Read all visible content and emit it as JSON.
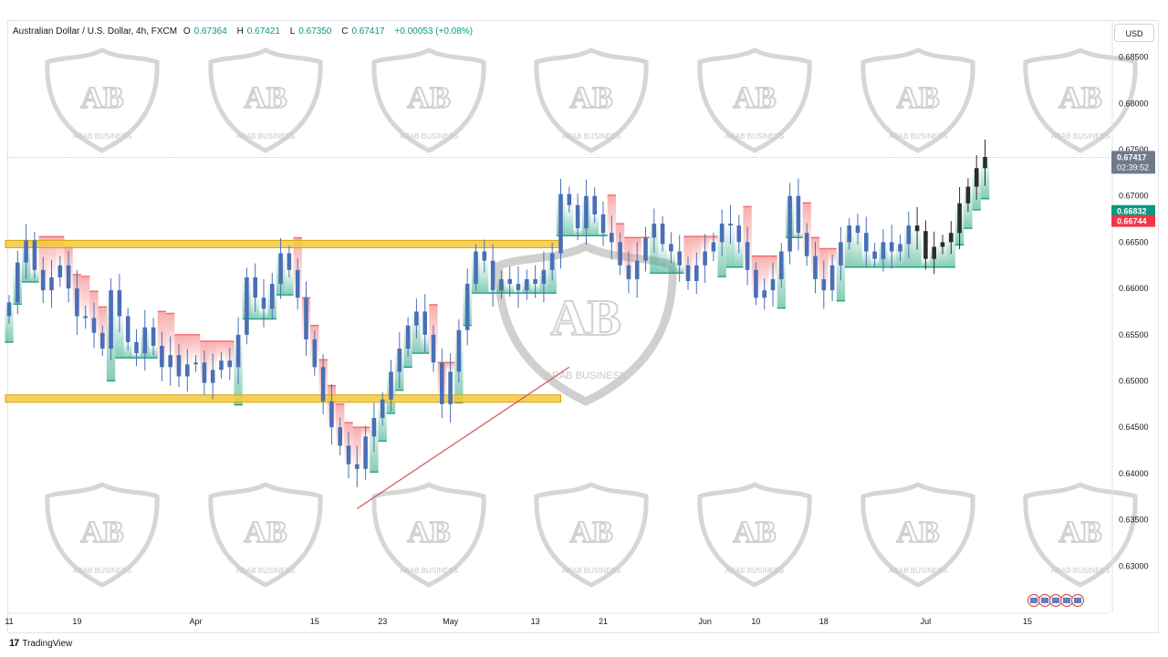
{
  "legend": {
    "symbol": "Australian Dollar / U.S. Dollar, 4h, FXCM",
    "open_label": "O",
    "open": "0.67364",
    "high_label": "H",
    "high": "0.67421",
    "low_label": "L",
    "low": "0.67350",
    "close_label": "C",
    "close": "0.67417",
    "change": "+0.00053 (+0.08%)"
  },
  "currency_button": "USD",
  "footer": {
    "logo": "17",
    "brand": "TradingView"
  },
  "watermark": {
    "logo": "AB",
    "text": "ARAB BUSINESS"
  },
  "colors": {
    "candle": "#4a6fb5",
    "candle_dark": "#2b2b2b",
    "zone": "#f5c842",
    "trendline": "#d9534f",
    "bull_fill": "#1fa37a",
    "bear_fill": "#f26b6b",
    "price_label_bg": "#707a8a",
    "green_label": "#089981",
    "red_label": "#f23645"
  },
  "chart_data": {
    "type": "candlestick",
    "title": "Australian Dollar / U.S. Dollar, 4h, FXCM",
    "ylim": [
      0.6255,
      0.689
    ],
    "x_ticks": [
      "11",
      "19",
      "Apr",
      "15",
      "23",
      "May",
      "13",
      "21",
      "Jun",
      "10",
      "18",
      "Jul",
      "15"
    ],
    "x_tick_index": [
      0,
      8,
      22,
      36,
      44,
      52,
      62,
      70,
      82,
      88,
      96,
      108,
      120
    ],
    "y_ticks": [
      "0.68500",
      "0.68000",
      "0.67500",
      "0.67000",
      "0.66500",
      "0.66000",
      "0.65500",
      "0.65000",
      "0.64500",
      "0.64000",
      "0.63500",
      "0.63000"
    ],
    "y_tick_values": [
      0.685,
      0.68,
      0.675,
      0.67,
      0.665,
      0.66,
      0.655,
      0.65,
      0.645,
      0.64,
      0.635,
      0.63
    ],
    "last_price": "0.67417",
    "countdown": "02:39:52",
    "support_label": "0.66832",
    "resistance_label": "0.66744",
    "zones": [
      {
        "top": 0.6652,
        "bottom": 0.6644,
        "from": 0,
        "to": 65
      },
      {
        "top": 0.6485,
        "bottom": 0.6477,
        "from": 0,
        "to": 65
      }
    ],
    "trendline": {
      "from": [
        41,
        0.6362
      ],
      "to": [
        66,
        0.6515
      ]
    },
    "close": [
      0.6585,
      0.6628,
      0.6652,
      0.662,
      0.6598,
      0.6612,
      0.6625,
      0.66,
      0.657,
      0.6568,
      0.6552,
      0.6535,
      0.6598,
      0.657,
      0.6542,
      0.653,
      0.6558,
      0.6538,
      0.6515,
      0.6528,
      0.6505,
      0.6518,
      0.652,
      0.6498,
      0.6512,
      0.6522,
      0.6515,
      0.655,
      0.6612,
      0.659,
      0.6578,
      0.6605,
      0.6638,
      0.662,
      0.659,
      0.6545,
      0.6515,
      0.6478,
      0.645,
      0.643,
      0.641,
      0.6405,
      0.644,
      0.646,
      0.648,
      0.651,
      0.6535,
      0.656,
      0.6575,
      0.655,
      0.652,
      0.6475,
      0.651,
      0.6555,
      0.6605,
      0.664,
      0.663,
      0.6598,
      0.661,
      0.6605,
      0.6598,
      0.661,
      0.6605,
      0.662,
      0.6638,
      0.6702,
      0.669,
      0.6665,
      0.67,
      0.668,
      0.666,
      0.665,
      0.6625,
      0.661,
      0.663,
      0.6655,
      0.667,
      0.6648,
      0.664,
      0.6625,
      0.6608,
      0.6625,
      0.664,
      0.665,
      0.667,
      0.6668,
      0.665,
      0.662,
      0.659,
      0.6598,
      0.661,
      0.664,
      0.67,
      0.666,
      0.6635,
      0.661,
      0.6598,
      0.6625,
      0.665,
      0.6668,
      0.666,
      0.664,
      0.6632,
      0.665,
      0.664,
      0.6648,
      0.6668,
      0.6662,
      0.6632,
      0.6645,
      0.665,
      0.666,
      0.6692,
      0.671,
      0.673,
      0.6742
    ]
  }
}
